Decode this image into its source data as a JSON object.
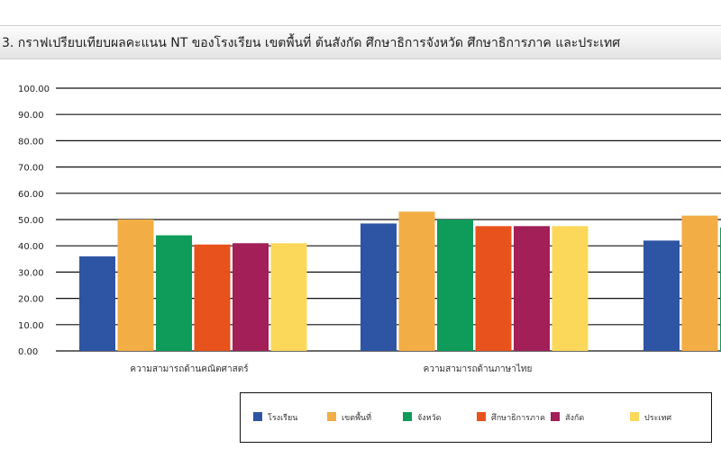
{
  "header": {
    "title": "3. กราฟเปรียบเทียบผลคะแนน NT ของโรงเรียน เขตพื้นที่  ต้นสังกัด ศึกษาธิการจังหวัด ศึกษาธิการภาค และประเทศ"
  },
  "chart_data": {
    "type": "bar",
    "ylim": [
      0,
      100
    ],
    "yticks": [
      "0.00",
      "10.00",
      "20.00",
      "30.00",
      "40.00",
      "50.00",
      "60.00",
      "70.00",
      "80.00",
      "90.00",
      "100.00"
    ],
    "grid": true,
    "legend_position": "bottom",
    "categories": [
      "ความสามารถด้านคณิตศาสตร์",
      "ความสามารถด้านภาษาไทย",
      ""
    ],
    "series": [
      {
        "name": "โรงเรียน",
        "color": "#2e55a4",
        "values": [
          36,
          48.5,
          42
        ]
      },
      {
        "name": "เขตพื้นที่",
        "color": "#f3ad45",
        "values": [
          50,
          53,
          51.5
        ]
      },
      {
        "name": "จังหวัด",
        "color": "#0f9b5a",
        "values": [
          44,
          50,
          47
        ]
      },
      {
        "name": "ศึกษาธิการภาค",
        "color": "#e8521d",
        "values": [
          40.5,
          47.5,
          null
        ]
      },
      {
        "name": "สังกัด",
        "color": "#a21f58",
        "values": [
          41,
          47.5,
          null
        ]
      },
      {
        "name": "ประเทศ",
        "color": "#fbd85a",
        "values": [
          41,
          47.5,
          null
        ]
      }
    ]
  }
}
